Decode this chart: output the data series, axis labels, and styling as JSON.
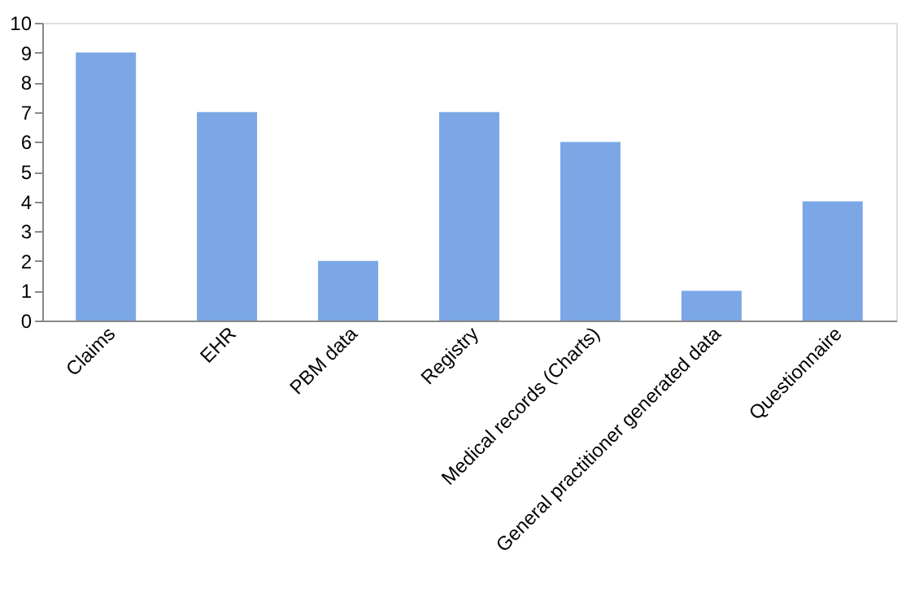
{
  "chart_data": {
    "type": "bar",
    "categories": [
      "Claims",
      "EHR",
      "PBM data",
      "Registry",
      "Medical records (Charts)",
      "General practitioner generated data",
      "Questionnaire"
    ],
    "values": [
      9,
      7,
      2,
      7,
      6,
      1,
      4
    ],
    "color": "#7ba7e6",
    "ylim": [
      0,
      10
    ],
    "yticks": [
      0,
      1,
      2,
      3,
      4,
      5,
      6,
      7,
      8,
      9,
      10
    ],
    "grid": false
  }
}
